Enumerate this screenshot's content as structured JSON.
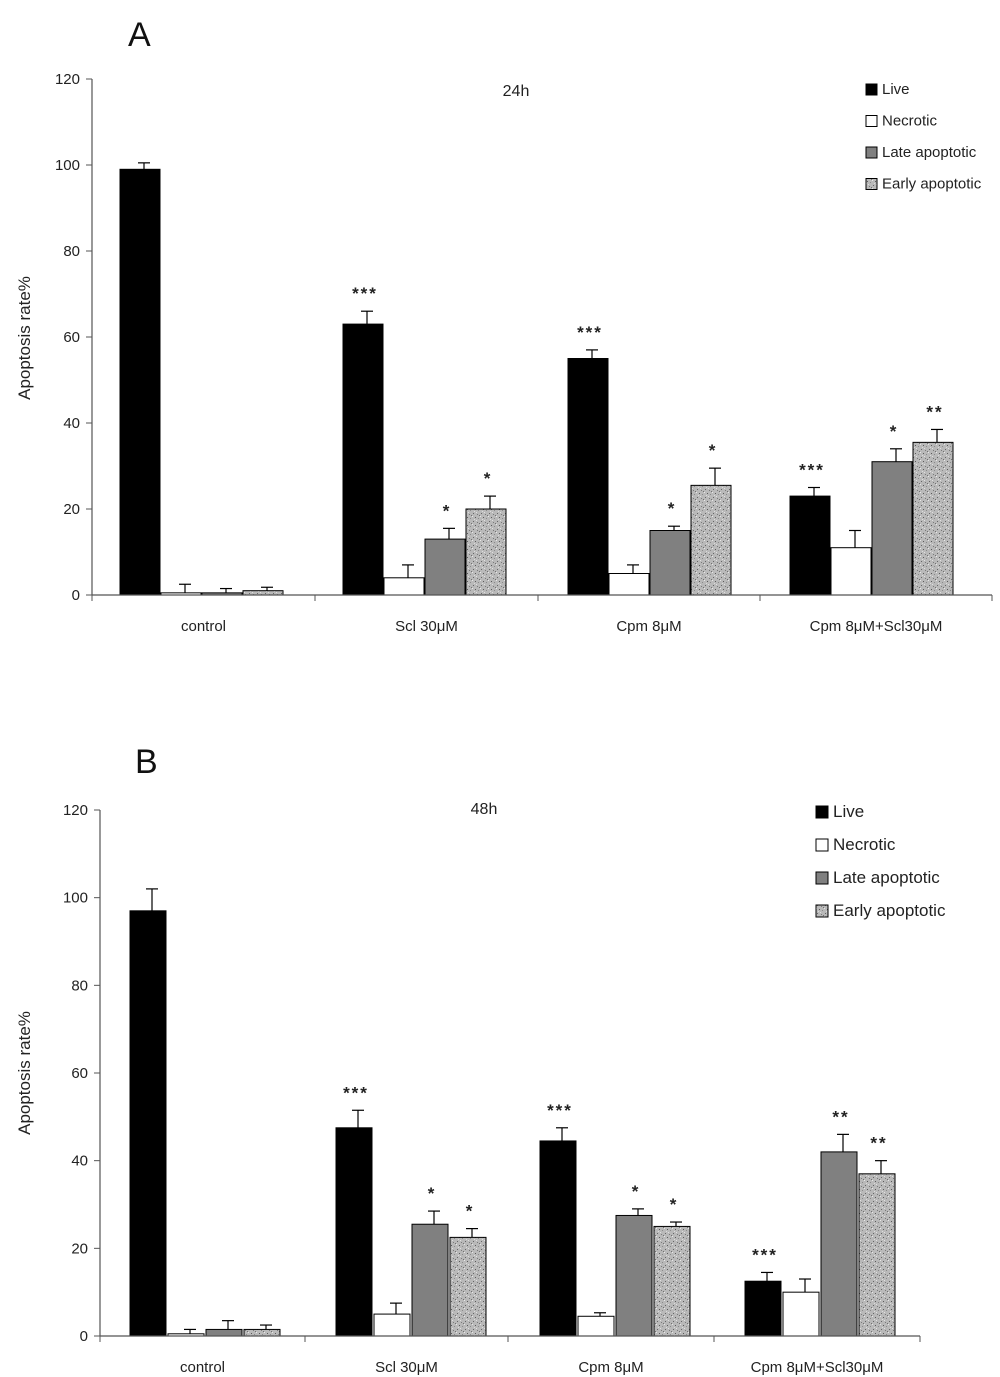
{
  "chart_data": [
    {
      "type": "bar",
      "panel_label": "A",
      "title": "24h",
      "ylabel": "Apoptosis rate%",
      "xlabel": "",
      "ylim": [
        0,
        120
      ],
      "yticks": [
        "0",
        "20",
        "40",
        "60",
        "80",
        "100",
        "120"
      ],
      "categories": [
        "control",
        "Scl 30μM",
        "Cpm 8μM",
        "Cpm 8μM+Scl30μM"
      ],
      "legend_position": "top-right",
      "series": [
        {
          "name": "Live",
          "color": "#000000",
          "pattern": "solid",
          "values": [
            99,
            63,
            55,
            23
          ],
          "errors": [
            1.5,
            3,
            2,
            2
          ],
          "significance": [
            "",
            "***",
            "***",
            "***"
          ]
        },
        {
          "name": "Necrotic",
          "color": "#ffffff",
          "pattern": "solid",
          "values": [
            0.5,
            4,
            5,
            11
          ],
          "errors": [
            2,
            3,
            2,
            4
          ],
          "significance": [
            "",
            "",
            "",
            ""
          ]
        },
        {
          "name": "Late apoptotic",
          "color": "#808080",
          "pattern": "solid",
          "values": [
            0.5,
            13,
            15,
            31
          ],
          "errors": [
            1,
            2.5,
            1,
            3
          ],
          "significance": [
            "",
            "*",
            "*",
            "*"
          ]
        },
        {
          "name": "Early apoptotic",
          "color": "#b4b4b4",
          "pattern": "speckled",
          "values": [
            1,
            20,
            25.5,
            35.5
          ],
          "errors": [
            0.8,
            3,
            4,
            3
          ],
          "significance": [
            "",
            "*",
            "*",
            "**"
          ]
        }
      ]
    },
    {
      "type": "bar",
      "panel_label": "B",
      "title": "48h",
      "ylabel": "Apoptosis rate%",
      "xlabel": "",
      "ylim": [
        0,
        120
      ],
      "yticks": [
        "0",
        "20",
        "40",
        "60",
        "80",
        "100",
        "120"
      ],
      "categories": [
        "control",
        "Scl 30μM",
        "Cpm 8μM",
        "Cpm 8μM+Scl30μM"
      ],
      "legend_position": "top-right",
      "series": [
        {
          "name": "Live",
          "color": "#000000",
          "pattern": "solid",
          "values": [
            97,
            47.5,
            44.5,
            12.5
          ],
          "errors": [
            5,
            4,
            3,
            2
          ],
          "significance": [
            "",
            "***",
            "***",
            "***"
          ]
        },
        {
          "name": "Necrotic",
          "color": "#ffffff",
          "pattern": "solid",
          "values": [
            0.5,
            5,
            4.5,
            10
          ],
          "errors": [
            1,
            2.5,
            0.8,
            3
          ],
          "significance": [
            "",
            "",
            "",
            ""
          ]
        },
        {
          "name": "Late apoptotic",
          "color": "#808080",
          "pattern": "solid",
          "values": [
            1.5,
            25.5,
            27.5,
            42
          ],
          "errors": [
            2,
            3,
            1.5,
            4
          ],
          "significance": [
            "",
            "*",
            "*",
            "**"
          ]
        },
        {
          "name": "Early apoptotic",
          "color": "#b4b4b4",
          "pattern": "speckled",
          "values": [
            1.5,
            22.5,
            25,
            37
          ],
          "errors": [
            1,
            2,
            1,
            3
          ],
          "significance": [
            "",
            "*",
            "*",
            "**"
          ]
        }
      ]
    }
  ]
}
